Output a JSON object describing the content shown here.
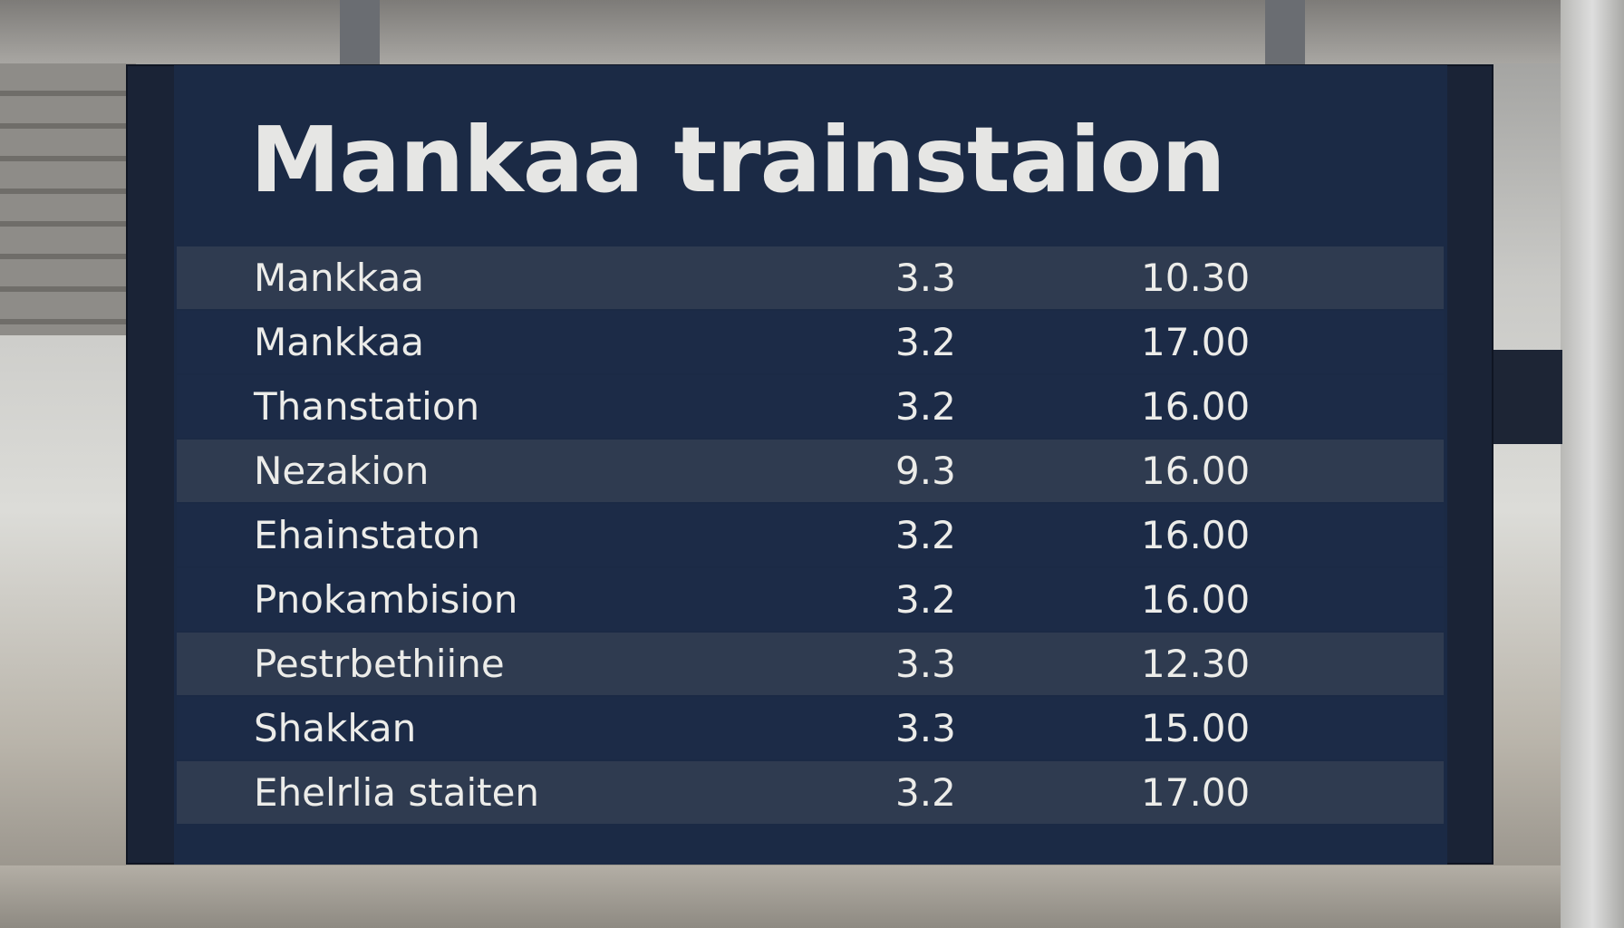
{
  "board": {
    "title": "Mankaa trainstaion",
    "rows": [
      [
        "Mankkaa",
        "3.3",
        "10.30"
      ],
      [
        "Mankkaa",
        "3.2",
        "17.00"
      ],
      [
        "Thanstation",
        "3.2",
        "16.00"
      ],
      [
        "Nezakion",
        "9.3",
        "16.00"
      ],
      [
        "Ehainstaton",
        "3.2",
        "16.00"
      ],
      [
        "Pnokambision",
        "3.2",
        "16.00"
      ],
      [
        "Pestrbethiine",
        "3.3",
        "12.30"
      ],
      [
        "Shakkan",
        "3.3",
        "15.00"
      ],
      [
        "Ehelrlia staiten",
        "3.2",
        "17.00"
      ]
    ]
  }
}
